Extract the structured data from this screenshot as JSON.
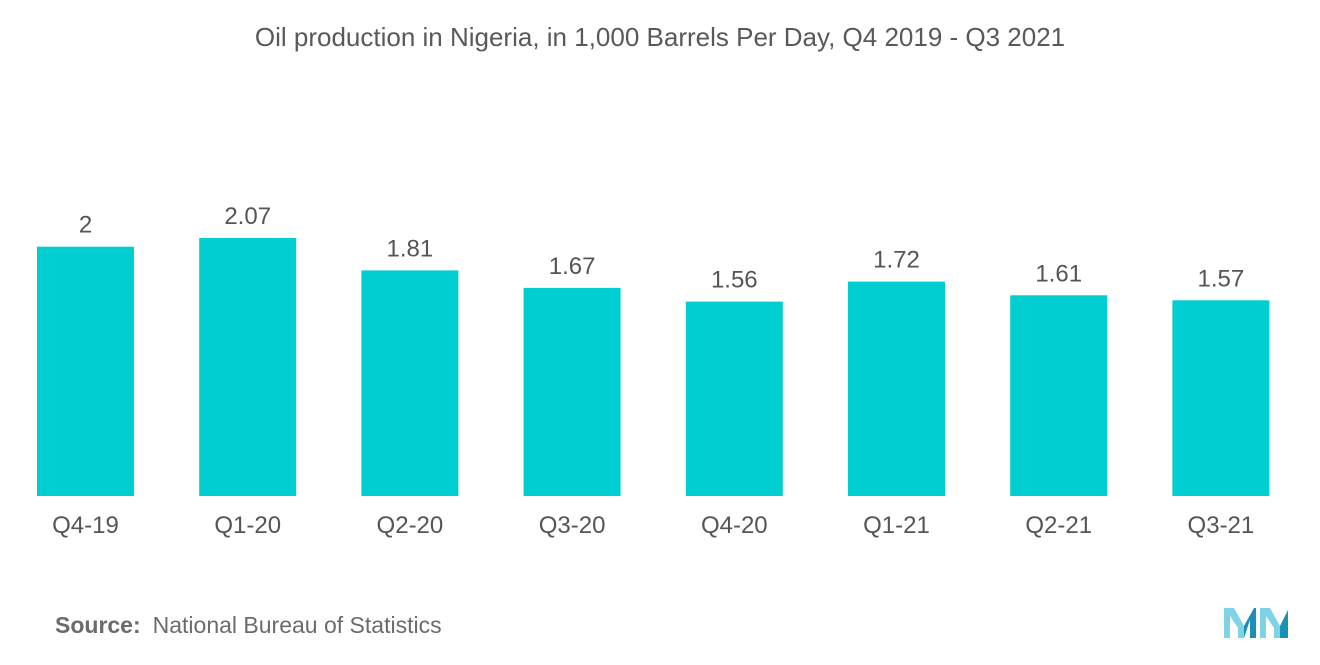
{
  "chart_data": {
    "type": "bar",
    "title": "Oil production in Nigeria, in 1,000 Barrels Per Day, Q4 2019 - Q3 2021",
    "categories": [
      "Q4-19",
      "Q1-20",
      "Q2-20",
      "Q3-20",
      "Q4-20",
      "Q1-21",
      "Q2-21",
      "Q3-21"
    ],
    "values": [
      2,
      2.07,
      1.81,
      1.67,
      1.56,
      1.72,
      1.61,
      1.57
    ],
    "value_labels": [
      "2",
      "2.07",
      "1.81",
      "1.67",
      "1.56",
      "1.72",
      "1.61",
      "1.57"
    ],
    "xlabel": "",
    "ylabel": "",
    "ylim": [
      0,
      2.07
    ],
    "grid": false,
    "legend": "none",
    "bar_color": "#00CED1"
  },
  "source": {
    "label": "Source:",
    "text": "National Bureau of Statistics"
  },
  "brand_colors": {
    "logo_light": "#7FD3E6",
    "logo_dark": "#1A8FB8"
  }
}
